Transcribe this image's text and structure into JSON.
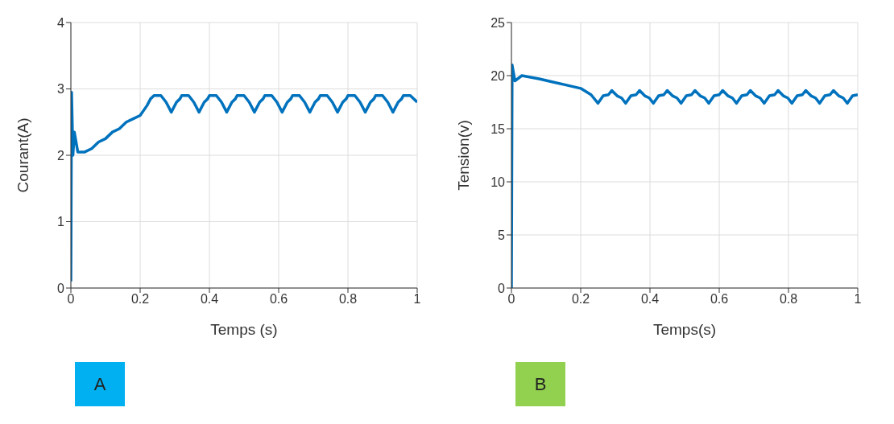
{
  "chart_data": [
    {
      "type": "line",
      "xlabel": "Temps (s)",
      "ylabel": "Courant(A)",
      "xlim": [
        0,
        1
      ],
      "xticks": [
        0,
        0.2,
        0.4,
        0.6,
        0.8,
        1
      ],
      "ylim": [
        0,
        4
      ],
      "yticks": [
        0,
        1,
        2,
        3,
        4
      ],
      "grid": true,
      "color": "#0072bd",
      "annotations": [
        "A"
      ],
      "x": [
        0,
        0.002,
        0.006,
        0.01,
        0.02,
        0.04,
        0.06,
        0.08,
        0.1,
        0.12,
        0.14,
        0.16,
        0.18,
        0.2,
        0.22,
        0.23,
        0.24,
        0.26,
        0.275,
        0.29,
        0.305,
        0.315,
        0.32,
        0.34,
        0.355,
        0.37,
        0.385,
        0.395,
        0.4,
        0.42,
        0.435,
        0.45,
        0.465,
        0.475,
        0.48,
        0.5,
        0.515,
        0.53,
        0.545,
        0.555,
        0.56,
        0.58,
        0.595,
        0.61,
        0.625,
        0.635,
        0.64,
        0.66,
        0.675,
        0.69,
        0.705,
        0.715,
        0.72,
        0.74,
        0.755,
        0.77,
        0.785,
        0.795,
        0.8,
        0.82,
        0.835,
        0.85,
        0.865,
        0.875,
        0.88,
        0.9,
        0.915,
        0.93,
        0.945,
        0.955,
        0.96,
        0.98,
        1
      ],
      "values": [
        0.1,
        2.95,
        2.0,
        2.35,
        2.05,
        2.05,
        2.1,
        2.2,
        2.25,
        2.35,
        2.4,
        2.5,
        2.55,
        2.6,
        2.75,
        2.85,
        2.9,
        2.9,
        2.8,
        2.65,
        2.8,
        2.85,
        2.9,
        2.9,
        2.8,
        2.65,
        2.8,
        2.85,
        2.9,
        2.9,
        2.8,
        2.65,
        2.8,
        2.85,
        2.9,
        2.9,
        2.8,
        2.65,
        2.8,
        2.85,
        2.9,
        2.9,
        2.8,
        2.65,
        2.8,
        2.85,
        2.9,
        2.9,
        2.8,
        2.65,
        2.8,
        2.85,
        2.9,
        2.9,
        2.8,
        2.65,
        2.8,
        2.85,
        2.9,
        2.9,
        2.8,
        2.65,
        2.8,
        2.85,
        2.9,
        2.9,
        2.8,
        2.65,
        2.8,
        2.85,
        2.9,
        2.9,
        2.8
      ]
    },
    {
      "type": "line",
      "xlabel": "Temps(s)",
      "ylabel": "Tension(v)",
      "xlim": [
        0,
        1
      ],
      "xticks": [
        0,
        0.2,
        0.4,
        0.6,
        0.8,
        1
      ],
      "ylim": [
        0,
        25
      ],
      "yticks": [
        0,
        5,
        10,
        15,
        20,
        25
      ],
      "grid": true,
      "color": "#0072bd",
      "annotations": [
        "B"
      ],
      "x": [
        0,
        0.002,
        0.01,
        0.03,
        0.08,
        0.12,
        0.16,
        0.2,
        0.23,
        0.25,
        0.265,
        0.28,
        0.29,
        0.305,
        0.318,
        0.33,
        0.345,
        0.36,
        0.37,
        0.385,
        0.398,
        0.41,
        0.425,
        0.44,
        0.45,
        0.465,
        0.478,
        0.49,
        0.505,
        0.52,
        0.53,
        0.545,
        0.558,
        0.57,
        0.585,
        0.6,
        0.61,
        0.625,
        0.638,
        0.65,
        0.665,
        0.68,
        0.69,
        0.705,
        0.718,
        0.73,
        0.745,
        0.76,
        0.77,
        0.785,
        0.798,
        0.81,
        0.825,
        0.84,
        0.85,
        0.865,
        0.878,
        0.89,
        0.905,
        0.92,
        0.93,
        0.945,
        0.958,
        0.97,
        0.985,
        1
      ],
      "values": [
        0,
        21,
        19.5,
        20,
        19.7,
        19.4,
        19.1,
        18.8,
        18.2,
        17.4,
        18.1,
        18.2,
        18.6,
        18.1,
        17.9,
        17.4,
        18.1,
        18.2,
        18.6,
        18.1,
        17.9,
        17.4,
        18.1,
        18.2,
        18.6,
        18.1,
        17.9,
        17.4,
        18.1,
        18.2,
        18.6,
        18.1,
        17.9,
        17.4,
        18.1,
        18.2,
        18.6,
        18.1,
        17.9,
        17.4,
        18.1,
        18.2,
        18.6,
        18.1,
        17.9,
        17.4,
        18.1,
        18.2,
        18.6,
        18.1,
        17.9,
        17.4,
        18.1,
        18.2,
        18.6,
        18.1,
        17.9,
        17.4,
        18.1,
        18.2,
        18.6,
        18.1,
        17.9,
        17.4,
        18.1,
        18.2
      ]
    }
  ]
}
